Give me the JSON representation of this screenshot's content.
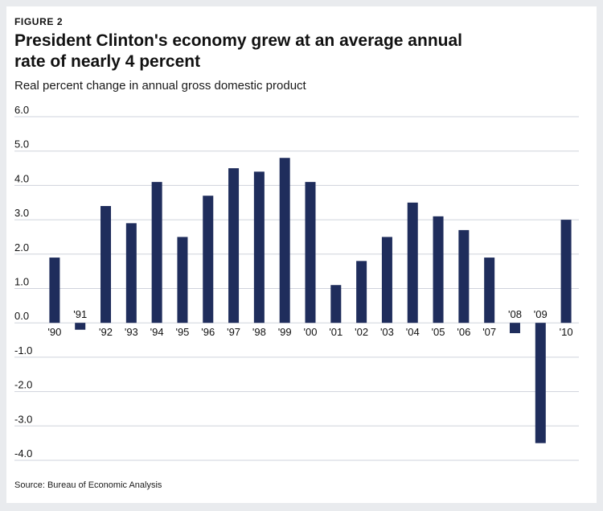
{
  "figure_label": "FIGURE 2",
  "title": "President Clinton's economy grew at an average annual rate of nearly 4 percent",
  "subtitle": "Real percent change in annual gross domestic product",
  "source": "Source: Bureau of Economic Analysis",
  "colors": {
    "bar": "#1f2d5c",
    "grid": "#cfd3dc",
    "text": "#111111"
  },
  "chart_data": {
    "type": "bar",
    "title": "President Clinton's economy grew at an average annual rate of nearly 4 percent",
    "ylabel": "Real percent change in annual gross domestic product",
    "xlabel": "",
    "categories": [
      "'90",
      "'91",
      "'92",
      "'93",
      "'94",
      "'95",
      "'96",
      "'97",
      "'98",
      "'99",
      "'00",
      "'01",
      "'02",
      "'03",
      "'04",
      "'05",
      "'06",
      "'07",
      "'08",
      "'09",
      "'10"
    ],
    "values": [
      1.9,
      -0.2,
      3.4,
      2.9,
      4.1,
      2.5,
      3.7,
      4.5,
      4.4,
      4.8,
      4.1,
      1.1,
      1.8,
      2.5,
      3.5,
      3.1,
      2.7,
      1.9,
      -0.3,
      -3.5,
      3.0
    ],
    "ylim": [
      -4.0,
      6.0
    ],
    "yticks": [
      6.0,
      5.0,
      4.0,
      3.0,
      2.0,
      1.0,
      0.0,
      -1.0,
      -2.0,
      -3.0,
      -4.0
    ],
    "ytick_labels": [
      "6.0",
      "5.0",
      "4.0",
      "3.0",
      "2.0",
      "1.0",
      "0.0",
      "-1.0",
      "-2.0",
      "-3.0",
      "-4.0"
    ],
    "grid": true,
    "legend": false
  }
}
